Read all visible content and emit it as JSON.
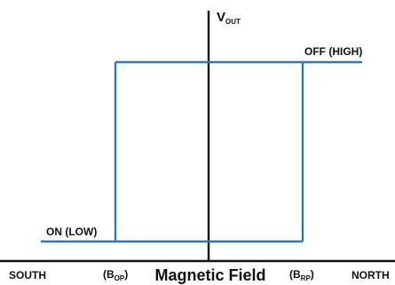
{
  "y_axis": {
    "label_main": "V",
    "label_sub": "OUT"
  },
  "x_axis": {
    "left_label": "SOUTH",
    "right_label": "NORTH",
    "title": "Magnetic Field",
    "bop_main": "(B",
    "bop_sub": "OP",
    "bop_close": ")",
    "brp_main": "(B",
    "brp_sub": "RP",
    "brp_close": ")"
  },
  "states": {
    "high": "OFF (HIGH)",
    "low": "ON (LOW)"
  },
  "colors": {
    "axis": "#111111",
    "curve": "#2f77b5",
    "text": "#111111"
  }
}
